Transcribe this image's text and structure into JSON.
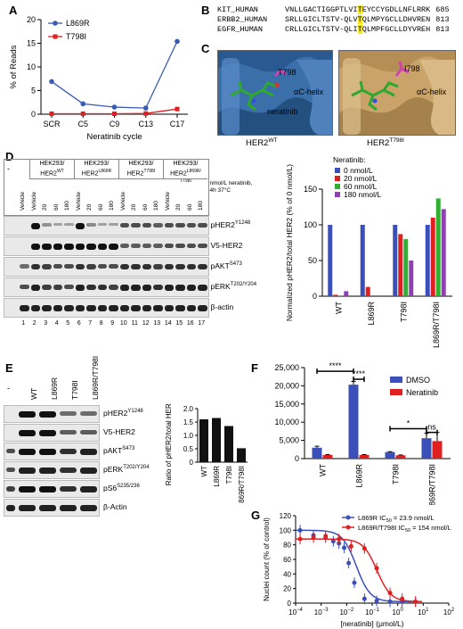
{
  "panels": {
    "A": {
      "letter": "A"
    },
    "B": {
      "letter": "B"
    },
    "C": {
      "letter": "C"
    },
    "D": {
      "letter": "D"
    },
    "E": {
      "letter": "E"
    },
    "F": {
      "letter": "F"
    },
    "G": {
      "letter": "G"
    }
  },
  "seq": {
    "rows": [
      {
        "name": "KIT_HUMAN",
        "left": "VNLLGACTIGGPTLVI",
        "hl": "T",
        "right": "EYCCYGDLLNFLRRK",
        "num": "685"
      },
      {
        "name": "ERBB2_HUMAN",
        "left": "SRLLGICLTSTV-QLV",
        "hl": "T",
        "right": "QLMPYGCLLDHVREN",
        "num": "813"
      },
      {
        "name": "EGFR_HUMAN",
        "left": "CRLLGICLTSTV-QLI",
        "hl": "T",
        "right": "QLMPFGCLLDYVREH",
        "num": "813"
      }
    ]
  },
  "structure": {
    "left": {
      "residue": "T798",
      "helix": "αC-helix",
      "drug": "neratinib",
      "caption_main": "HER2",
      "caption_sup": "WT"
    },
    "right": {
      "residue": "I798",
      "helix": "αC-helix",
      "caption_main": "HER2",
      "caption_sup": "T798I"
    }
  },
  "blotD": {
    "col_dash": "-",
    "groups": [
      {
        "l1": "HEK293/",
        "l2": "HER2",
        "sup": "WT"
      },
      {
        "l1": "HEK293/",
        "l2": "HER2",
        "sup": "L869R"
      },
      {
        "l1": "HEK293/",
        "l2": "HER2",
        "sup": "T798I"
      },
      {
        "l1": "HEK293/",
        "l2": "HER2",
        "sup": "L869R/ T798I"
      }
    ],
    "doses": [
      "Vehicle",
      "Vehicle",
      "20",
      "60",
      "180",
      "Vehicle",
      "20",
      "60",
      "180",
      "Vehicle",
      "20",
      "60",
      "180",
      "Vehicle",
      "20",
      "60",
      "180"
    ],
    "condition": [
      "nmol/L neratinib,",
      "4h 37°C"
    ],
    "rows": [
      {
        "main": "pHER2",
        "sup": "Y1248"
      },
      {
        "main": "V5-HER2",
        "sup": ""
      },
      {
        "main": "pAKT",
        "sup": "S473"
      },
      {
        "main": "pERK",
        "sup": "T202/Y204"
      },
      {
        "main": "β-actin",
        "sup": ""
      }
    ],
    "lanes": [
      "1",
      "2",
      "3",
      "4",
      "5",
      "6",
      "7",
      "8",
      "9",
      "10",
      "11",
      "12",
      "13",
      "14",
      "15",
      "16",
      "17"
    ]
  },
  "blotE": {
    "col_dash": "-",
    "columns": [
      "WT",
      "L869R",
      "T798I",
      "L869R/T798I"
    ],
    "rows": [
      {
        "main": "pHER2",
        "sup": "Y1248"
      },
      {
        "main": "V5-HER2",
        "sup": ""
      },
      {
        "main": "pAKT",
        "sup": "S473"
      },
      {
        "main": "pERK",
        "sup": "T202/Y204"
      },
      {
        "main": "pS6",
        "sup": "S235/236"
      },
      {
        "main": "β-Actin",
        "sup": ""
      }
    ]
  },
  "chart_data": [
    {
      "id": "A",
      "type": "line",
      "categories": [
        "SCR",
        "C5",
        "C9",
        "C13",
        "C17"
      ],
      "series": [
        {
          "name": "L869R",
          "color": "#3a5bb5",
          "values": [
            6.9,
            2.2,
            1.5,
            1.3,
            15.4
          ]
        },
        {
          "name": "T798I",
          "color": "#e02020",
          "values": [
            0.1,
            0.1,
            0.1,
            0.15,
            1.1
          ]
        }
      ],
      "xlabel": "Neratinib cycle",
      "ylabel": "% of Reads",
      "ylim": [
        0,
        20
      ],
      "yticks": [
        "0",
        "5",
        "10",
        "15",
        "20"
      ],
      "legend": "top-left"
    },
    {
      "id": "D",
      "type": "bar",
      "categories": [
        "WT",
        "L869R",
        "T798I",
        "L869R/T798I"
      ],
      "series": [
        {
          "name": "0 nmol/L",
          "color": "#3a4fb8",
          "values": [
            100,
            100,
            100,
            100
          ]
        },
        {
          "name": "20 nmol/L",
          "color": "#e02020",
          "values": [
            2,
            13,
            87,
            110
          ]
        },
        {
          "name": "60 nmol/L",
          "color": "#30b030",
          "values": [
            1,
            0,
            80,
            137
          ]
        },
        {
          "name": "180 nmol/L",
          "color": "#9040b0",
          "values": [
            7,
            0,
            50,
            122
          ]
        }
      ],
      "legend_title": "Neratinib:",
      "ylabel": "Normalized pHER2/total HER2 (% of 0 nmol/L)",
      "ylim": [
        0,
        150
      ],
      "yticks": [
        "0",
        "50",
        "100",
        "150"
      ],
      "legend": "top-left"
    },
    {
      "id": "E",
      "type": "bar",
      "categories": [
        "WT",
        "L869R",
        "T798I",
        "L869R/T798I"
      ],
      "values": [
        1.6,
        1.65,
        1.35,
        0.52
      ],
      "color": "#111111",
      "ylabel": "Ratio of pHER2/total HER2",
      "ylim": [
        0,
        2.0
      ],
      "yticks": [
        "0",
        "0.5",
        "1.0",
        "1.5",
        "2.0"
      ]
    },
    {
      "id": "F",
      "type": "bar",
      "categories": [
        "WT",
        "L869R",
        "T798I",
        "L869R/T798I"
      ],
      "series": [
        {
          "name": "DMSO",
          "color": "#3a4fb8",
          "values": [
            3000,
            20300,
            1800,
            5600
          ],
          "errors": [
            400,
            900,
            100,
            1400
          ]
        },
        {
          "name": "Neratinib",
          "color": "#e02020",
          "values": [
            1000,
            1000,
            900,
            4800
          ],
          "errors": [
            100,
            100,
            100,
            2400
          ]
        }
      ],
      "ylim": [
        0,
        25000
      ],
      "yticks": [
        "0",
        "5,000",
        "10,000",
        "15,000",
        "20,000",
        "25,000"
      ],
      "legend": "top-right",
      "annotations": [
        {
          "text": "****",
          "from": "WT",
          "to": "L869R"
        },
        {
          "text": "****",
          "from": "L869R-DMSO",
          "to": "L869R-Neratinib"
        },
        {
          "text": "*",
          "from": "T798I",
          "to": "L869R/T798I"
        },
        {
          "text": "ns",
          "from": "L869R/T798I-DMSO",
          "to": "L869R/T798I-Neratinib"
        }
      ]
    },
    {
      "id": "G",
      "type": "scatter",
      "xscale": "log",
      "xlim": [
        0.0001,
        100
      ],
      "ylim": [
        0,
        120
      ],
      "xticks": [
        "10",
        "10",
        "10",
        "10",
        "10",
        "10",
        "10"
      ],
      "xtick_exps": [
        "−4",
        "−3",
        "−2",
        "−1",
        "0",
        "1",
        "2"
      ],
      "yticks": [
        "0",
        "20",
        "40",
        "60",
        "80",
        "100",
        "120"
      ],
      "xlabel": "[neratinib] (μmol/L)",
      "ylabel": "Nuclei count (% of control)",
      "series": [
        {
          "name": "L869R IC",
          "name_sub": "50",
          "name_rest": " = 23.9 nmol/L",
          "color": "#3a4fb8",
          "ic50": 0.0239,
          "x": [
            0.00015,
            0.0005,
            0.0015,
            0.003,
            0.005,
            0.008,
            0.012,
            0.02,
            0.05,
            0.15,
            0.5,
            1.5,
            5
          ],
          "y": [
            100,
            93,
            90,
            85,
            82,
            76,
            55,
            28,
            6,
            3,
            2,
            2,
            2
          ]
        },
        {
          "name": "L869R/T798I IC",
          "name_sub": "50",
          "name_rest": " = 154 nmol/L",
          "color": "#e02020",
          "ic50": 0.154,
          "x": [
            0.00015,
            0.0005,
            0.0015,
            0.005,
            0.015,
            0.05,
            0.15,
            0.5,
            1.5,
            5
          ],
          "y": [
            88,
            90,
            92,
            88,
            78,
            75,
            48,
            14,
            6,
            2
          ]
        }
      ],
      "legend": "top-right"
    }
  ]
}
